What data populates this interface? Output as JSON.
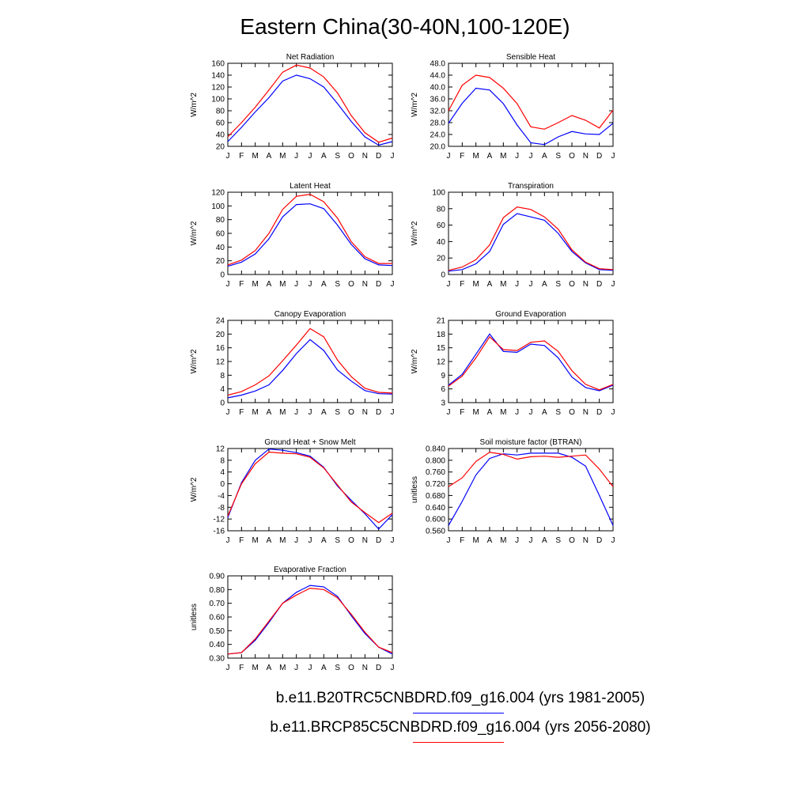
{
  "figure": {
    "title": "Eastern China(30-40N,100-120E)",
    "months": [
      "J",
      "F",
      "M",
      "A",
      "M",
      "J",
      "J",
      "A",
      "S",
      "O",
      "N",
      "D",
      "J"
    ],
    "colors": {
      "series1": "#0000ff",
      "series2": "#ff0000"
    },
    "legend": [
      {
        "label": "b.e11.B20TRC5CNBDRD.f09_g16.004 (yrs 1981-2005)",
        "color": "#0000ff"
      },
      {
        "label": "b.e11.BRCP85C5CNBDRD.f09_g16.004 (yrs 2056-2080)",
        "color": "#ff0000"
      }
    ]
  },
  "chart_data": [
    {
      "type": "line",
      "title": "Net Radiation",
      "ylabel": "W/m^2",
      "ylim": [
        20,
        160
      ],
      "yticks": [
        "20",
        "40",
        "60",
        "80",
        "100",
        "120",
        "140",
        "160"
      ],
      "series": [
        {
          "values": [
            28,
            52,
            78,
            102,
            130,
            140,
            134,
            120,
            92,
            62,
            36,
            22,
            28
          ]
        },
        {
          "values": [
            36,
            60,
            86,
            115,
            145,
            157,
            152,
            137,
            110,
            72,
            43,
            27,
            34
          ]
        }
      ]
    },
    {
      "type": "line",
      "title": "Sensible Heat",
      "ylabel": "W/m^2",
      "ylim": [
        20,
        48
      ],
      "yticks": [
        "20.0",
        "24.0",
        "28.0",
        "32.0",
        "36.0",
        "40.0",
        "44.0",
        "48.0"
      ],
      "series": [
        {
          "values": [
            27.8,
            34.5,
            39.6,
            39.0,
            34.4,
            27.2,
            21.2,
            20.6,
            23.2,
            25.0,
            24.2,
            24.0,
            27.8
          ]
        },
        {
          "values": [
            32.0,
            40.6,
            44.0,
            43.2,
            39.6,
            34.4,
            26.6,
            25.8,
            28.0,
            30.4,
            28.8,
            26.2,
            32.2
          ]
        }
      ]
    },
    {
      "type": "line",
      "title": "Latent Heat",
      "ylabel": "W/m^2",
      "ylim": [
        0,
        120
      ],
      "yticks": [
        "0",
        "20",
        "40",
        "60",
        "80",
        "100",
        "120"
      ],
      "series": [
        {
          "values": [
            12,
            18,
            30,
            52,
            84,
            102,
            103,
            96,
            72,
            44,
            23,
            14,
            13
          ]
        },
        {
          "values": [
            14,
            21,
            35,
            60,
            95,
            114,
            117,
            106,
            82,
            48,
            26,
            16,
            16
          ]
        }
      ]
    },
    {
      "type": "line",
      "title": "Transpiration",
      "ylabel": "W/m^2",
      "ylim": [
        0,
        100
      ],
      "yticks": [
        "0",
        "20",
        "40",
        "60",
        "80",
        "100"
      ],
      "series": [
        {
          "values": [
            4,
            6,
            13,
            28,
            61,
            74,
            70,
            66,
            50,
            28,
            14,
            6,
            5
          ]
        },
        {
          "values": [
            5,
            9,
            18,
            36,
            69,
            82,
            79,
            70,
            55,
            30,
            15,
            7,
            6
          ]
        }
      ]
    },
    {
      "type": "line",
      "title": "Canopy Evaporation",
      "ylabel": "W/m^2",
      "ylim": [
        0,
        24
      ],
      "yticks": [
        "0",
        "4",
        "8",
        "12",
        "16",
        "20",
        "24"
      ],
      "series": [
        {
          "values": [
            1.4,
            2.2,
            3.4,
            5.2,
            9.4,
            14.3,
            18.4,
            15.2,
            9.5,
            6.3,
            3.5,
            2.6,
            2.5
          ]
        },
        {
          "values": [
            2.2,
            3.2,
            5.2,
            7.8,
            12.2,
            16.8,
            21.6,
            19.2,
            12.4,
            7.6,
            4.2,
            3.0,
            2.8
          ]
        }
      ]
    },
    {
      "type": "line",
      "title": "Ground Evaporation",
      "ylabel": "W/m^2",
      "ylim": [
        3,
        21
      ],
      "yticks": [
        "3",
        "6",
        "9",
        "12",
        "15",
        "18",
        "21"
      ],
      "series": [
        {
          "values": [
            6.8,
            9.2,
            13.6,
            18.0,
            14.2,
            14.0,
            15.8,
            15.5,
            12.8,
            8.6,
            6.3,
            5.6,
            6.8
          ]
        },
        {
          "values": [
            6.6,
            8.8,
            12.8,
            17.4,
            14.6,
            14.4,
            16.2,
            16.5,
            14.2,
            10.0,
            7.0,
            5.8,
            7.0
          ]
        }
      ]
    },
    {
      "type": "line",
      "title": "Ground Heat + Snow Melt",
      "ylabel": "W/m^2",
      "ylim": [
        -16,
        12
      ],
      "yticks": [
        "-16",
        "-12",
        "-8",
        "-4",
        "0",
        "4",
        "8",
        "12"
      ],
      "series": [
        {
          "values": [
            -11.5,
            0.4,
            8.0,
            11.8,
            11.4,
            10.6,
            9.4,
            5.6,
            -0.8,
            -5.6,
            -10.2,
            -15.4,
            -10.5
          ]
        },
        {
          "values": [
            -11.0,
            0.0,
            6.8,
            10.8,
            10.4,
            10.2,
            9.0,
            5.4,
            -0.4,
            -6.2,
            -9.8,
            -13.2,
            -10.0
          ]
        }
      ]
    },
    {
      "type": "line",
      "title": "Soil moisture factor (BTRAN)",
      "ylabel": "unitless",
      "ylim": [
        0.56,
        0.84
      ],
      "yticks": [
        "0.560",
        "0.600",
        "0.640",
        "0.680",
        "0.720",
        "0.760",
        "0.800",
        "0.840"
      ],
      "series": [
        {
          "values": [
            0.578,
            0.66,
            0.75,
            0.806,
            0.822,
            0.818,
            0.824,
            0.824,
            0.824,
            0.81,
            0.78,
            0.68,
            0.578
          ]
        },
        {
          "values": [
            0.71,
            0.74,
            0.796,
            0.827,
            0.82,
            0.804,
            0.812,
            0.814,
            0.81,
            0.814,
            0.818,
            0.77,
            0.71
          ]
        }
      ]
    },
    {
      "type": "line",
      "title": "Evaporative Fraction",
      "ylabel": "unitless",
      "ylim": [
        0.3,
        0.9
      ],
      "yticks": [
        "0.30",
        "0.40",
        "0.50",
        "0.60",
        "0.70",
        "0.80",
        "0.90"
      ],
      "series": [
        {
          "values": [
            0.33,
            0.34,
            0.43,
            0.56,
            0.7,
            0.78,
            0.83,
            0.82,
            0.75,
            0.61,
            0.48,
            0.38,
            0.33
          ]
        },
        {
          "values": [
            0.33,
            0.34,
            0.44,
            0.57,
            0.7,
            0.76,
            0.81,
            0.8,
            0.74,
            0.62,
            0.49,
            0.38,
            0.34
          ]
        }
      ]
    }
  ]
}
